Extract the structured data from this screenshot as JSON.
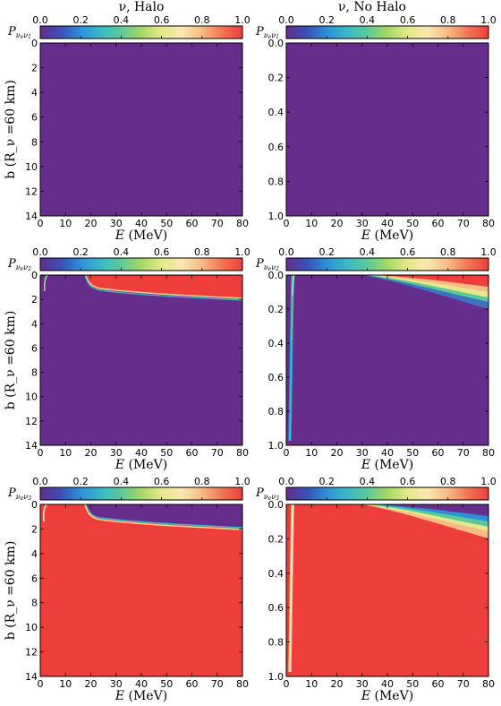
{
  "titles": {
    "left": "ν, Halo",
    "right": "ν, No Halo"
  },
  "colorbar": {
    "ticks": [
      "0.0",
      "0.2",
      "0.4",
      "0.6",
      "0.8",
      "1.0"
    ],
    "colormap": "rainbow"
  },
  "colors": {
    "low": "#662d8c",
    "high": "#ee3e3c"
  },
  "xlabel": "E (MeV)",
  "ylabel": "b (R_ν =60 km)",
  "chart_data": [
    {
      "type": "heatmap",
      "panel": "row1-left",
      "colorbar_label": "P νeν1",
      "x": [
        0,
        10,
        20,
        30,
        40,
        50,
        60,
        70,
        80
      ],
      "ylim": [
        14,
        0
      ],
      "yticks": [
        "0",
        "2",
        "4",
        "6",
        "8",
        "10",
        "12",
        "14"
      ],
      "z_summary": "uniform value 0 across the whole domain"
    },
    {
      "type": "heatmap",
      "panel": "row1-right",
      "colorbar_label": "P νeν1",
      "x": [
        0,
        10,
        20,
        30,
        40,
        50,
        60,
        70,
        80
      ],
      "ylim": [
        1,
        0
      ],
      "yticks": [
        "0.0",
        "0.2",
        "0.4",
        "0.6",
        "0.8",
        "1.0"
      ],
      "z_summary": "uniform value 0 across the whole domain"
    },
    {
      "type": "heatmap",
      "panel": "row2-left",
      "colorbar_label": "P νeν2",
      "x": [
        0,
        10,
        20,
        30,
        40,
        50,
        60,
        70,
        80
      ],
      "ylim": [
        14,
        0
      ],
      "yticks": [
        "0",
        "2",
        "4",
        "6",
        "8",
        "10",
        "12",
        "14"
      ],
      "z_summary": "value 1 above a boundary from b≈0 at E≈18 MeV to b≈1.9 at E=80 MeV, 0 elsewhere; thin band near E≈2 MeV"
    },
    {
      "type": "heatmap",
      "panel": "row2-right",
      "colorbar_label": "P νeν2",
      "x": [
        0,
        10,
        20,
        30,
        40,
        50,
        60,
        70,
        80
      ],
      "ylim": [
        1,
        0
      ],
      "yticks": [
        "0.0",
        "0.2",
        "0.4",
        "0.6",
        "0.8",
        "1.0"
      ],
      "z_summary": "value 1 in a wedge starting near E≈30 MeV, b≈0 to b≈0.15 at 80 MeV; thin band near E≈2 MeV"
    },
    {
      "type": "heatmap",
      "panel": "row3-left",
      "colorbar_label": "P νeν3",
      "x": [
        0,
        10,
        20,
        30,
        40,
        50,
        60,
        70,
        80
      ],
      "ylim": [
        14,
        0
      ],
      "yticks": [
        "0",
        "2",
        "4",
        "6",
        "8",
        "10",
        "12",
        "14"
      ],
      "z_summary": "value 0 in region above boundary from E≈18 MeV to b≈1.9 at 80 MeV; 1 elsewhere"
    },
    {
      "type": "heatmap",
      "panel": "row3-right",
      "colorbar_label": "P νeν3",
      "x": [
        0,
        10,
        20,
        30,
        40,
        50,
        60,
        70,
        80
      ],
      "ylim": [
        1,
        0
      ],
      "yticks": [
        "0.0",
        "0.2",
        "0.4",
        "0.6",
        "0.8",
        "1.0"
      ],
      "z_summary": "value 0 in wedge from E≈30 MeV near b≈0 to b≈0.15 at 80 MeV; 1 elsewhere"
    }
  ]
}
